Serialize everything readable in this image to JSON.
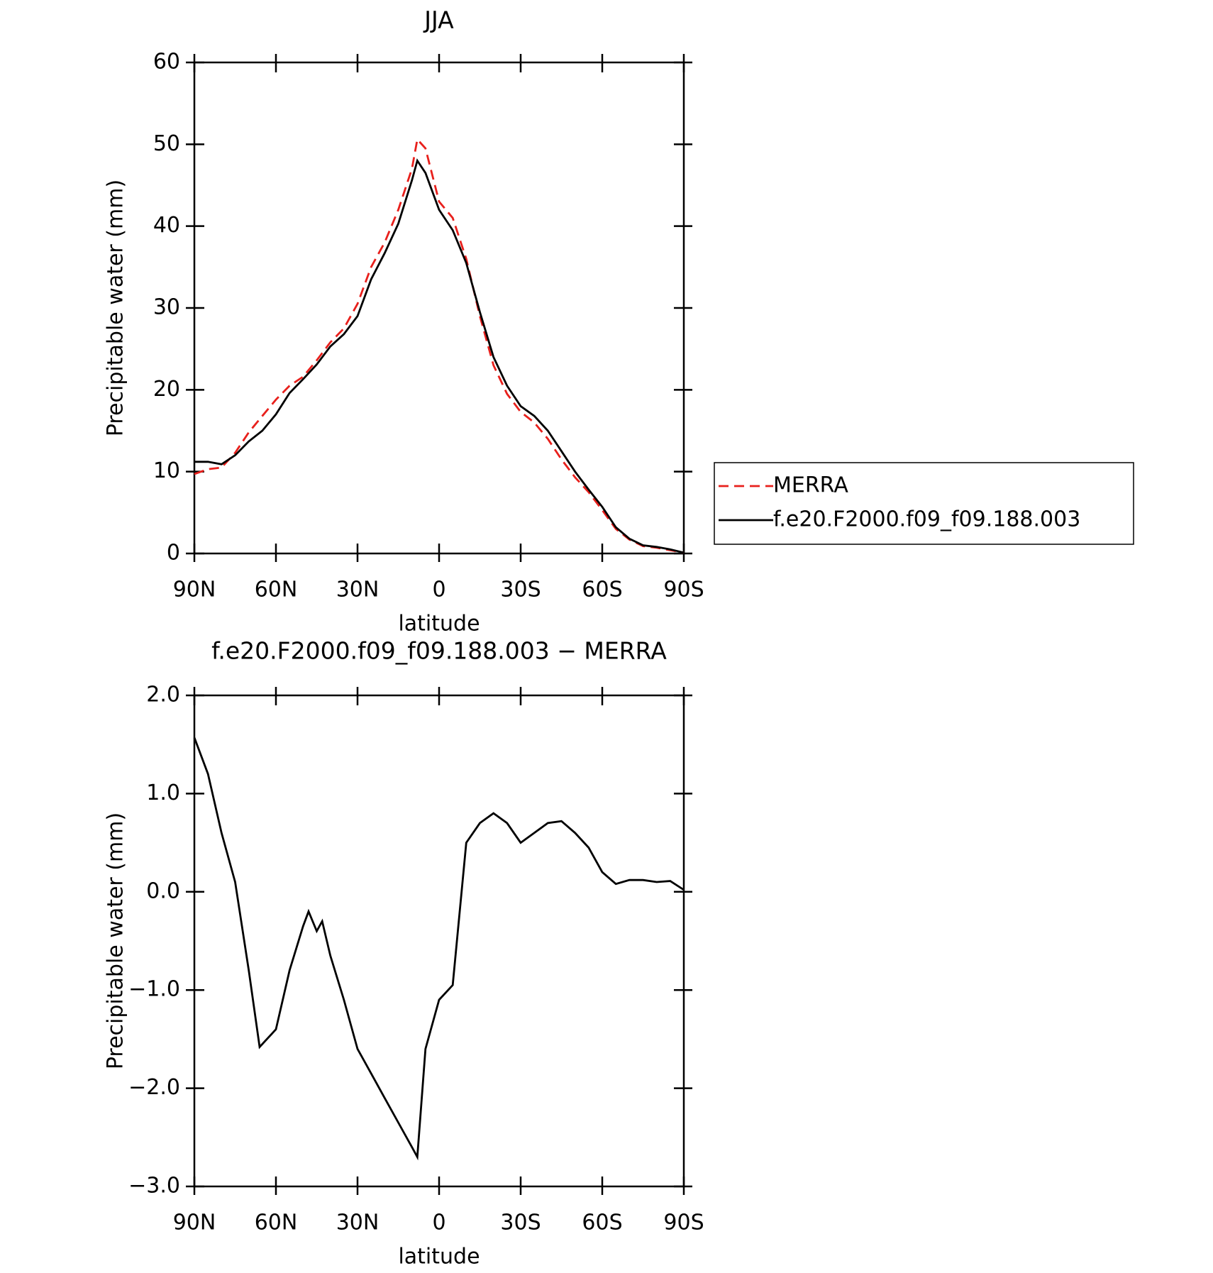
{
  "chart_data": [
    {
      "type": "line",
      "title": "JJA",
      "xlabel": "latitude",
      "ylabel": "Precipitable water (mm)",
      "x": [
        90,
        85,
        80,
        75,
        70,
        65,
        60,
        55,
        50,
        45,
        40,
        35,
        30,
        25,
        20,
        15,
        10,
        8,
        5,
        0,
        -5,
        -10,
        -15,
        -20,
        -25,
        -30,
        -35,
        -40,
        -45,
        -50,
        -55,
        -60,
        -65,
        -70,
        -75,
        -80,
        -85,
        -90
      ],
      "xlim": [
        90,
        -90
      ],
      "xticks": [
        {
          "value": 90,
          "label": "90N"
        },
        {
          "value": 60,
          "label": "60N"
        },
        {
          "value": 30,
          "label": "30N"
        },
        0,
        {
          "value": -30,
          "label": "30S"
        },
        {
          "value": -60,
          "label": "60S"
        },
        {
          "value": -90,
          "label": "90S"
        }
      ],
      "ylim": [
        0,
        60
      ],
      "yticks": [
        0,
        10,
        20,
        30,
        40,
        50,
        60
      ],
      "legend": "right",
      "series": [
        {
          "name": "MERRA",
          "color": "#e8201c",
          "style": "dashed",
          "values": [
            9.7,
            10.3,
            10.5,
            12.3,
            14.8,
            16.8,
            18.8,
            20.5,
            21.6,
            23.6,
            25.8,
            27.5,
            30.5,
            35,
            38,
            42,
            47,
            50.6,
            49.5,
            43,
            41,
            36,
            29,
            23,
            19.5,
            17.3,
            16,
            14,
            11.5,
            9.3,
            7.5,
            5.3,
            3,
            1.7,
            0.9,
            0.7,
            0.4,
            0.1
          ]
        },
        {
          "name": "f.e20.F2000.f09_f09.188.003",
          "color": "#000000",
          "style": "solid",
          "values": [
            11.2,
            11.2,
            10.9,
            12,
            13.7,
            15,
            17,
            19.6,
            21.3,
            23.1,
            25.3,
            26.8,
            29,
            33.5,
            36.7,
            40.3,
            45.6,
            48,
            46.5,
            42,
            39.5,
            35.5,
            29.5,
            24,
            20.5,
            18,
            16.8,
            15,
            12.5,
            10,
            7.8,
            5.7,
            3.2,
            1.8,
            1,
            0.8,
            0.5,
            0.1
          ]
        }
      ]
    },
    {
      "type": "line",
      "title": "f.e20.F2000.f09_f09.188.003 − MERRA",
      "xlabel": "latitude",
      "ylabel": "Precipitable water (mm)",
      "x": [
        90,
        85,
        80,
        75,
        70,
        66,
        60,
        55,
        50,
        48,
        45,
        43,
        40,
        35,
        30,
        25,
        20,
        15,
        10,
        8,
        5,
        0,
        -5,
        -10,
        -15,
        -20,
        -25,
        -30,
        -35,
        -40,
        -45,
        -50,
        -55,
        -60,
        -65,
        -70,
        -75,
        -80,
        -85,
        -90
      ],
      "xlim": [
        90,
        -90
      ],
      "xticks": [
        {
          "value": 90,
          "label": "90N"
        },
        {
          "value": 60,
          "label": "60N"
        },
        {
          "value": 30,
          "label": "30N"
        },
        0,
        {
          "value": -30,
          "label": "30S"
        },
        {
          "value": -60,
          "label": "60S"
        },
        {
          "value": -90,
          "label": "90S"
        }
      ],
      "ylim": [
        -3,
        2
      ],
      "yticks": [
        {
          "value": -3,
          "label": "−3.0"
        },
        {
          "value": -2,
          "label": "−2.0"
        },
        {
          "value": -1,
          "label": "−1.0"
        },
        {
          "value": 0,
          "label": "0.0"
        },
        {
          "value": 1,
          "label": "1.0"
        },
        {
          "value": 2,
          "label": "2.0"
        }
      ],
      "series": [
        {
          "color": "#000000",
          "style": "solid",
          "values": [
            1.57,
            1.2,
            0.6,
            0.1,
            -0.8,
            -1.58,
            -1.4,
            -0.8,
            -0.35,
            -0.2,
            -0.4,
            -0.3,
            -0.65,
            -1.1,
            -1.6,
            -1.85,
            -2.1,
            -2.35,
            -2.6,
            -2.7,
            -1.6,
            -1.1,
            -0.95,
            0.5,
            0.7,
            0.8,
            0.7,
            0.5,
            0.6,
            0.7,
            0.72,
            0.6,
            0.45,
            0.2,
            0.08,
            0.12,
            0.12,
            0.1,
            0.11,
            0.02
          ]
        }
      ]
    }
  ]
}
